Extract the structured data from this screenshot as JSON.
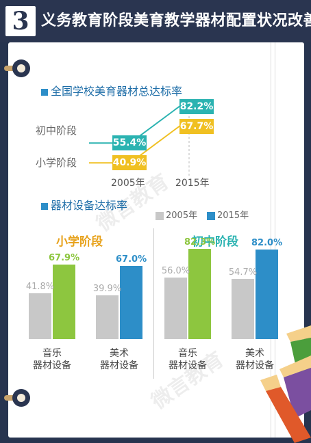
{
  "header": {
    "number": "3",
    "title": "义务教育阶段美育教学器材配置状况改善"
  },
  "watermark": {
    "text": "微言教育"
  },
  "colors": {
    "gray": "#c8c8c8",
    "green": "#8dc63f",
    "blue": "#2d8ec8",
    "teal": "#2bb3b1",
    "yellow": "#f0c022",
    "orange": "#e7a21c"
  },
  "chart_data": [
    {
      "type": "line",
      "title": "全国学校美育器材总达标率",
      "x": [
        "2005年",
        "2015年"
      ],
      "series": [
        {
          "name": "初中阶段",
          "values": [
            55.4,
            82.2
          ],
          "labels": [
            "55.4%",
            "82.2%"
          ]
        },
        {
          "name": "小学阶段",
          "values": [
            40.9,
            67.7
          ],
          "labels": [
            "40.9%",
            "67.7%"
          ]
        }
      ]
    },
    {
      "type": "bar",
      "title": "器材设备达标率",
      "legend": [
        "2005年",
        "2015年"
      ],
      "panels": [
        {
          "name": "小学阶段",
          "categories": [
            [
              "音乐",
              "器材设备"
            ],
            [
              "美术",
              "器材设备"
            ]
          ],
          "values_2005": [
            41.8,
            39.9
          ],
          "values_2015": [
            67.9,
            67.0
          ],
          "labels_2005": [
            "41.8%",
            "39.9%"
          ],
          "labels_2015": [
            "67.9%",
            "67.0%"
          ]
        },
        {
          "name": "初中阶段",
          "categories": [
            [
              "音乐",
              "器材设备"
            ],
            [
              "美术",
              "器材设备"
            ]
          ],
          "values_2005": [
            56.0,
            54.7
          ],
          "values_2015": [
            82.3,
            82.0
          ],
          "labels_2005": [
            "56.0%",
            "54.7%"
          ],
          "labels_2015": [
            "82.3%",
            "82.0%"
          ]
        }
      ]
    }
  ]
}
